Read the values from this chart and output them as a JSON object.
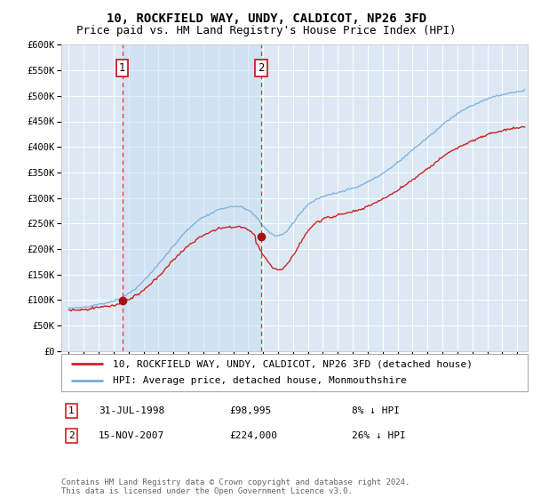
{
  "title": "10, ROCKFIELD WAY, UNDY, CALDICOT, NP26 3FD",
  "subtitle": "Price paid vs. HM Land Registry's House Price Index (HPI)",
  "ylim": [
    0,
    600000
  ],
  "yticks": [
    0,
    50000,
    100000,
    150000,
    200000,
    250000,
    300000,
    350000,
    400000,
    450000,
    500000,
    550000,
    600000
  ],
  "ytick_labels": [
    "£0",
    "£50K",
    "£100K",
    "£150K",
    "£200K",
    "£250K",
    "£300K",
    "£350K",
    "£400K",
    "£450K",
    "£500K",
    "£550K",
    "£600K"
  ],
  "bg_color": "#dce9f5",
  "line_hpi_color": "#7aaddb",
  "line_price_color": "#cc2222",
  "vline_color": "#ee3333",
  "marker_color": "#aa1111",
  "legend_label_price": "10, ROCKFIELD WAY, UNDY, CALDICOT, NP26 3FD (detached house)",
  "legend_label_hpi": "HPI: Average price, detached house, Monmouthshire",
  "annotation1_label": "1",
  "annotation1_date": "31-JUL-1998",
  "annotation1_price": "£98,995",
  "annotation1_pct": "8% ↓ HPI",
  "annotation1_year": 1998.58,
  "annotation1_value": 98995,
  "annotation2_label": "2",
  "annotation2_date": "15-NOV-2007",
  "annotation2_price": "£224,000",
  "annotation2_pct": "26% ↓ HPI",
  "annotation2_year": 2007.87,
  "annotation2_value": 224000,
  "footnote": "Contains HM Land Registry data © Crown copyright and database right 2024.\nThis data is licensed under the Open Government Licence v3.0.",
  "title_fontsize": 10,
  "subtitle_fontsize": 9,
  "tick_fontsize": 7.5,
  "legend_fontsize": 8,
  "annot_fontsize": 8,
  "footnote_fontsize": 6.5
}
